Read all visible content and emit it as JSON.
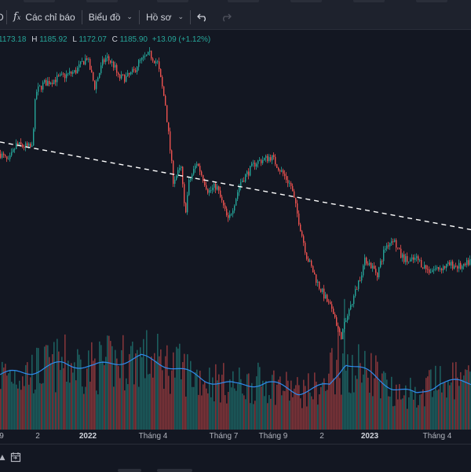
{
  "toolbar": {
    "indicators_label": "Các chỉ báo",
    "chart_label": "Biểu đồ",
    "profile_label": "Hồ sơ",
    "undo_icon": "undo-icon",
    "redo_icon": "redo-icon"
  },
  "legend": {
    "o_value": "1173.18",
    "h_label": "H",
    "h_value": "1185.92",
    "l_label": "L",
    "l_value": "1172.07",
    "c_label": "C",
    "c_value": "1185.90",
    "change": "+13.09 (+1.12%)"
  },
  "xaxis": {
    "labels": [
      "9",
      "2",
      "2022",
      "Tháng 4",
      "Tháng 7",
      "Tháng 9",
      "2",
      "2023",
      "Tháng 4"
    ]
  },
  "colors": {
    "background": "#131722",
    "up": "#26a69a",
    "down": "#ef5350",
    "volume_ma": "#2f8cf0",
    "trendline": "#ffffff"
  },
  "chart_data": {
    "type": "candlestick",
    "series": [
      {
        "name": "",
        "kind": "price-trend-key-points",
        "x_index": [
          0,
          10,
          20,
          40,
          45,
          55,
          75,
          95,
          110,
          120,
          130,
          135,
          145,
          150,
          160,
          170,
          175,
          190,
          200,
          210,
          220,
          230,
          235,
          240,
          250,
          265,
          275,
          290,
          300,
          305,
          325,
          345,
          370,
          390,
          405,
          425,
          433,
          450,
          465,
          480,
          490,
          500,
          510,
          520,
          530,
          545,
          560,
          575,
          590,
          600
        ],
        "y": [
          1075,
          1060,
          1090,
          1085,
          1180,
          1195,
          1205,
          1215,
          1240,
          1190,
          1230,
          1240,
          1225,
          1205,
          1205,
          1215,
          1230,
          1245,
          1230,
          1160,
          1030,
          1050,
          970,
          1025,
          1060,
          1010,
          1020,
          960,
          1000,
          1025,
          1060,
          1070,
          1020,
          900,
          850,
          800,
          760,
          830,
          895,
          870,
          915,
          930,
          900,
          890,
          895,
          875,
          880,
          885,
          880,
          895
        ]
      },
      {
        "name": "",
        "kind": "volume-moving-average",
        "x_index": [
          0,
          40,
          80,
          120,
          180,
          220,
          260,
          300,
          340,
          380,
          420,
          440,
          470,
          500,
          530,
          560,
          600
        ],
        "y": [
          0.35,
          0.37,
          0.42,
          0.4,
          0.46,
          0.4,
          0.32,
          0.28,
          0.3,
          0.24,
          0.28,
          0.43,
          0.36,
          0.27,
          0.22,
          0.3,
          0.3
        ]
      }
    ],
    "overlays": {
      "dashed_trendline": {
        "from": {
          "x_index": 0,
          "y": 1095
        },
        "to": {
          "x_index": 600,
          "y": 945
        }
      }
    },
    "xaxis_labels": [
      "9",
      "2",
      "2022",
      "Tháng 4",
      "Tháng 7",
      "Tháng 9",
      "2",
      "2023",
      "Tháng 4"
    ],
    "ylim": [
      740,
      1260
    ]
  }
}
